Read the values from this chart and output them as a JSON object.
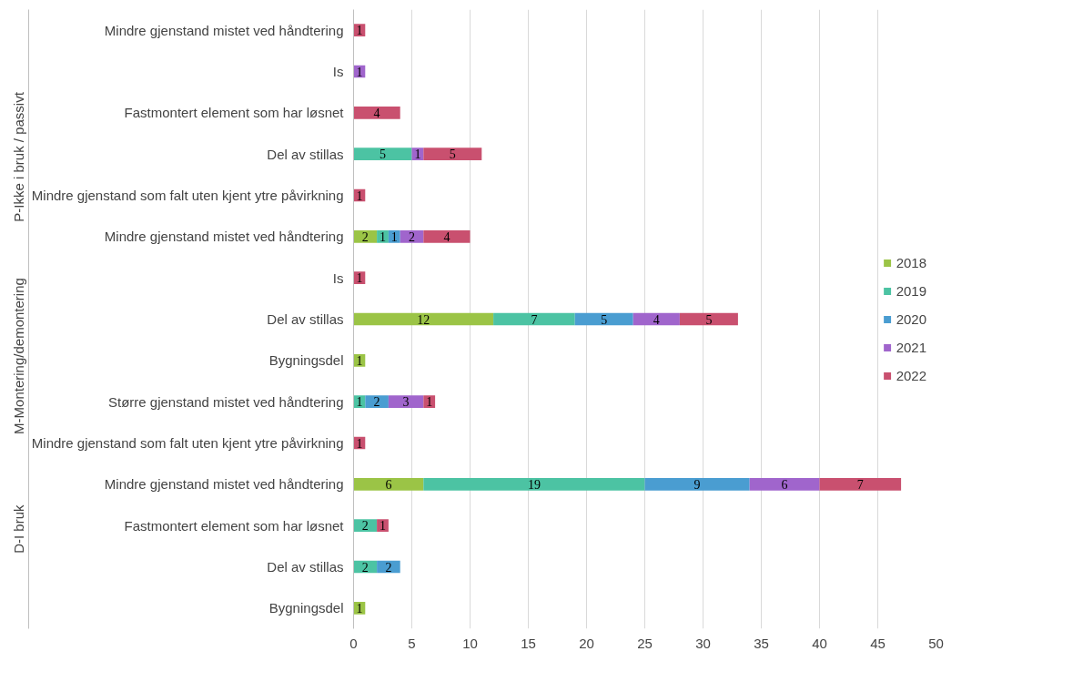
{
  "chart_data": {
    "type": "bar",
    "orientation": "horizontal",
    "stacked": true,
    "data_labels": true,
    "categories": [
      "Mindre gjenstand mistet ved håndtering",
      "Is",
      "Fastmontert element som har løsnet",
      "Del av stillas",
      "Mindre gjenstand som falt uten kjent ytre påvirkning",
      "Mindre gjenstand mistet ved håndtering",
      "Is",
      "Del av stillas",
      "Bygningsdel",
      "Større gjenstand mistet ved håndtering",
      "Mindre gjenstand som falt uten kjent ytre påvirkning",
      "Mindre gjenstand mistet ved håndtering",
      "Fastmontert element som har løsnet",
      "Del av stillas",
      "Bygningsdel"
    ],
    "annotations": [
      "P-Ikke i bruk / passivt",
      "M-Montering/demontering",
      "D-I bruk"
    ],
    "series": [
      {
        "name": "2018",
        "color": "#9bc446",
        "values": [
          null,
          null,
          null,
          null,
          null,
          2,
          null,
          12,
          1,
          null,
          null,
          6,
          null,
          null,
          1
        ]
      },
      {
        "name": "2019",
        "color": "#4cc3a3",
        "values": [
          null,
          null,
          null,
          5,
          null,
          1,
          null,
          7,
          null,
          1,
          null,
          19,
          2,
          2,
          null
        ]
      },
      {
        "name": "2020",
        "color": "#4a9dd1",
        "values": [
          null,
          null,
          null,
          null,
          null,
          1,
          null,
          5,
          null,
          2,
          null,
          9,
          null,
          2,
          null
        ]
      },
      {
        "name": "2021",
        "color": "#a065cc",
        "values": [
          null,
          1,
          null,
          1,
          null,
          2,
          null,
          4,
          null,
          3,
          null,
          6,
          null,
          null,
          null
        ]
      },
      {
        "name": "2022",
        "color": "#c9506f",
        "values": [
          1,
          null,
          4,
          5,
          1,
          4,
          1,
          5,
          null,
          1,
          1,
          7,
          1,
          null,
          null
        ]
      }
    ],
    "xlim": [
      0,
      50
    ],
    "xticks": [
      0,
      5,
      10,
      15,
      20,
      25,
      30,
      35,
      40,
      45,
      50
    ],
    "grid": "x",
    "legend": "right"
  }
}
